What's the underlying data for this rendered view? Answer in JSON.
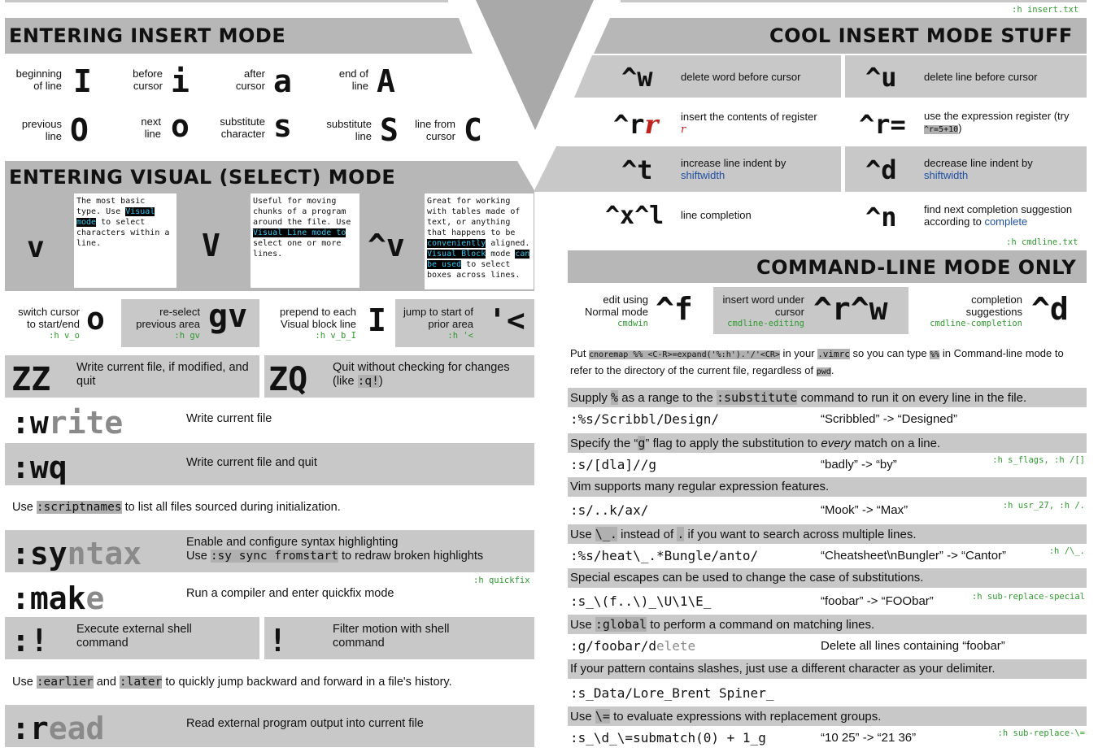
{
  "top_help": ":h insert.txt",
  "insert_mode": {
    "title": "ENTERING INSERT MODE",
    "keys": [
      {
        "label": "beginning of line",
        "key": "I"
      },
      {
        "label": "before cursor",
        "key": "i"
      },
      {
        "label": "after cursor",
        "key": "a"
      },
      {
        "label": "end of line",
        "key": "A"
      },
      {
        "label": "previous line",
        "key": "O"
      },
      {
        "label": "next line",
        "key": "o"
      },
      {
        "label": "substitute character",
        "key": "s"
      },
      {
        "label": "substitute line",
        "key": "S"
      },
      {
        "label": "line from cursor",
        "key": "C"
      }
    ]
  },
  "visual_mode": {
    "title": "ENTERING VISUAL (SELECT) MODE",
    "v_key": "v",
    "v_note_pre": "The most basic type. Use ",
    "v_note_hl": "Visual mode",
    "v_note_post": " to select characters within a line.",
    "V_key": "V",
    "V_note_pre": "Useful for moving chunks of a program around the file. Use ",
    "V_note_hl": "Visual Line mode to",
    "V_note_post": " select one or more lines.",
    "cv_key": "^v",
    "cv_note_pre": "Great for working with tables made of text, or anything that happens to be ",
    "cv_note_hl1": "conveniently",
    "cv_note_mid1": " aligned. ",
    "cv_note_hl2": "Visual Block",
    "cv_note_mid2": " mode ",
    "cv_note_hl3": "can be used",
    "cv_note_post": " to select boxes across  lines.",
    "switch_label": "switch cursor to start/end",
    "switch_help": ":h v_o",
    "switch_key": "o",
    "reselect_label": "re-select previous  area",
    "reselect_help": ":h gv",
    "reselect_key": "gv",
    "prepend_label": "prepend to each Visual block line",
    "prepend_help": ":h v_b_I",
    "prepend_key": "I",
    "jump_label": "jump to start of prior area",
    "jump_help": ":h '<",
    "jump_key": "'<"
  },
  "write_cmds": {
    "zz_key": "ZZ",
    "zz_desc": "Write current file, if modified, and quit",
    "zq_key": "ZQ",
    "zq_desc_pre": "Quit without checking for changes (like ",
    "zq_desc_code": ":q!",
    "zq_desc_post": ")",
    "write_key_a": ":w",
    "write_key_b": "rite",
    "write_desc": "Write current file",
    "wq_key": ":wq",
    "wq_desc": "Write current file and quit",
    "scriptnames_pre": "Use ",
    "scriptnames_code": ":scriptnames",
    "scriptnames_post": " to list all files sourced during initialization.",
    "syntax_key_a": ":sy",
    "syntax_key_b": "ntax",
    "syntax_desc1": "Enable and configure syntax highlighting",
    "syntax_desc2_pre": "Use ",
    "syntax_desc2_code": ":sy sync fromstart",
    "syntax_desc2_post": " to redraw broken highlights",
    "quickfix_help": ":h quickfix",
    "make_key_a": ":mak",
    "make_key_b": "e",
    "make_desc": "Run a compiler and enter quickfix mode",
    "shell_key": ":!",
    "shell_desc": "Execute external shell command",
    "filter_key": "!",
    "filter_desc": "Filter motion with shell command",
    "history_pre": "Use ",
    "history_code1": ":earlier",
    "history_mid": " and ",
    "history_code2": ":later",
    "history_post": " to quickly jump backward and forward in a file's history.",
    "read_key_a": ":r",
    "read_key_b": "ead",
    "read_desc": "Read external program output into current file"
  },
  "cool_insert": {
    "title": "COOL  INSERT MODE STUFF",
    "items": [
      {
        "key": "^w",
        "desc": "delete word before cursor"
      },
      {
        "key": "^u",
        "desc": "delete line before cursor"
      },
      {
        "key_a": "^r",
        "key_b": "r",
        "desc": "insert the contents of register ",
        "desc_reg": "r"
      },
      {
        "key": "^r=",
        "desc": "use the expression register (try ",
        "desc_code": "^r=5+10",
        "desc_post": ")"
      },
      {
        "key": "^t",
        "desc": "increase line indent by ",
        "desc_link": "shiftwidth"
      },
      {
        "key": "^d",
        "desc": "decrease line indent by ",
        "desc_link": "shiftwidth"
      },
      {
        "key": "^x^l",
        "desc": "line completion"
      },
      {
        "key": "^n",
        "desc": "find next completion suggestion according to ",
        "desc_link": "complete"
      }
    ],
    "cmdline_help": ":h cmdline.txt"
  },
  "cmdline": {
    "title": "COMMAND-LINE MODE ONLY",
    "f_label": "edit using Normal mode",
    "f_help": "cmdwin",
    "f_key": "^f",
    "rw_label": "insert word under cursor",
    "rw_help": "cmdline-editing",
    "rw_key": "^r^w",
    "d_label": "completion suggestions",
    "d_help": "cmdline-completion",
    "d_key": "^d",
    "put_pre": "Put ",
    "put_code": "cnoremap %% <C-R>=expand('%:h').'/'<CR>",
    "put_mid": " in your ",
    "put_code2": ".vimrc",
    "put_mid2": " so you can type ",
    "put_code3": "%%",
    "put_post": " in Command-line mode to refer to the directory of the current file, regardless of ",
    "put_code4": "pwd",
    "put_end": ".",
    "rows": [
      {
        "type": "tip",
        "pre": "Supply ",
        "code": "%",
        "post": " as a range to the ",
        "code2": ":substitute",
        "post2": " command to run it on every line in the file."
      },
      {
        "type": "ex",
        "code": ":%s/Scribbl/Design/",
        "result": "“Scribbled” -> “Designed”",
        "help": ""
      },
      {
        "type": "tip",
        "pre": "Specify the “",
        "code": "g",
        "post": "” flag to apply the substitution to ",
        "em": "every",
        "post2": " match on a line."
      },
      {
        "type": "ex",
        "code": ":s/[dla]//g",
        "result": "“badly” -> “by”",
        "help": ":h s_flags, :h /[]"
      },
      {
        "type": "tip",
        "pre": "Vim supports many regular expression features."
      },
      {
        "type": "ex",
        "code": ":s/..k/ax/",
        "result": "“Mook” -> “Max”",
        "help": ":h usr_27, :h /."
      },
      {
        "type": "tip",
        "pre": "Use ",
        "code": "\\_.",
        "post": " instead of ",
        "code2": ".",
        "post2": " if you want to search across multiple lines."
      },
      {
        "type": "ex",
        "code": ":%s/heat\\_.*Bungle/anto/",
        "result": "“Cheatsheet\\nBungler” -> “Cantor”",
        "help": ":h /\\_."
      },
      {
        "type": "tip",
        "pre": "Special escapes can be used to change the case of substitutions."
      },
      {
        "type": "ex",
        "code": ":s_\\(f..\\)_\\U\\1\\E_",
        "result": "“foobar” -> “FOObar”",
        "help": ":h sub-replace-special"
      },
      {
        "type": "tip",
        "pre": "Use ",
        "code": ":global",
        "post": " to perform a command on matching lines."
      },
      {
        "type": "ex2",
        "code": ":g/foobar/d",
        "code_lite": "elete",
        "result": "Delete all lines containing “foobar”",
        "help": ""
      },
      {
        "type": "tip",
        "pre": "If your pattern contains slashes, just use a different character as your delimiter."
      },
      {
        "type": "ex",
        "code": ":s_Data/Lore_Brent Spiner_",
        "result": "",
        "help": ""
      },
      {
        "type": "tip",
        "pre": "Use ",
        "code": "\\=",
        "post": " to evaluate expressions with replacement groups."
      },
      {
        "type": "ex",
        "code": ":s_\\d_\\=submatch(0) + 1_g",
        "result": "“10 25” -> “21 36”",
        "help": ":h sub-replace-\\="
      }
    ]
  }
}
